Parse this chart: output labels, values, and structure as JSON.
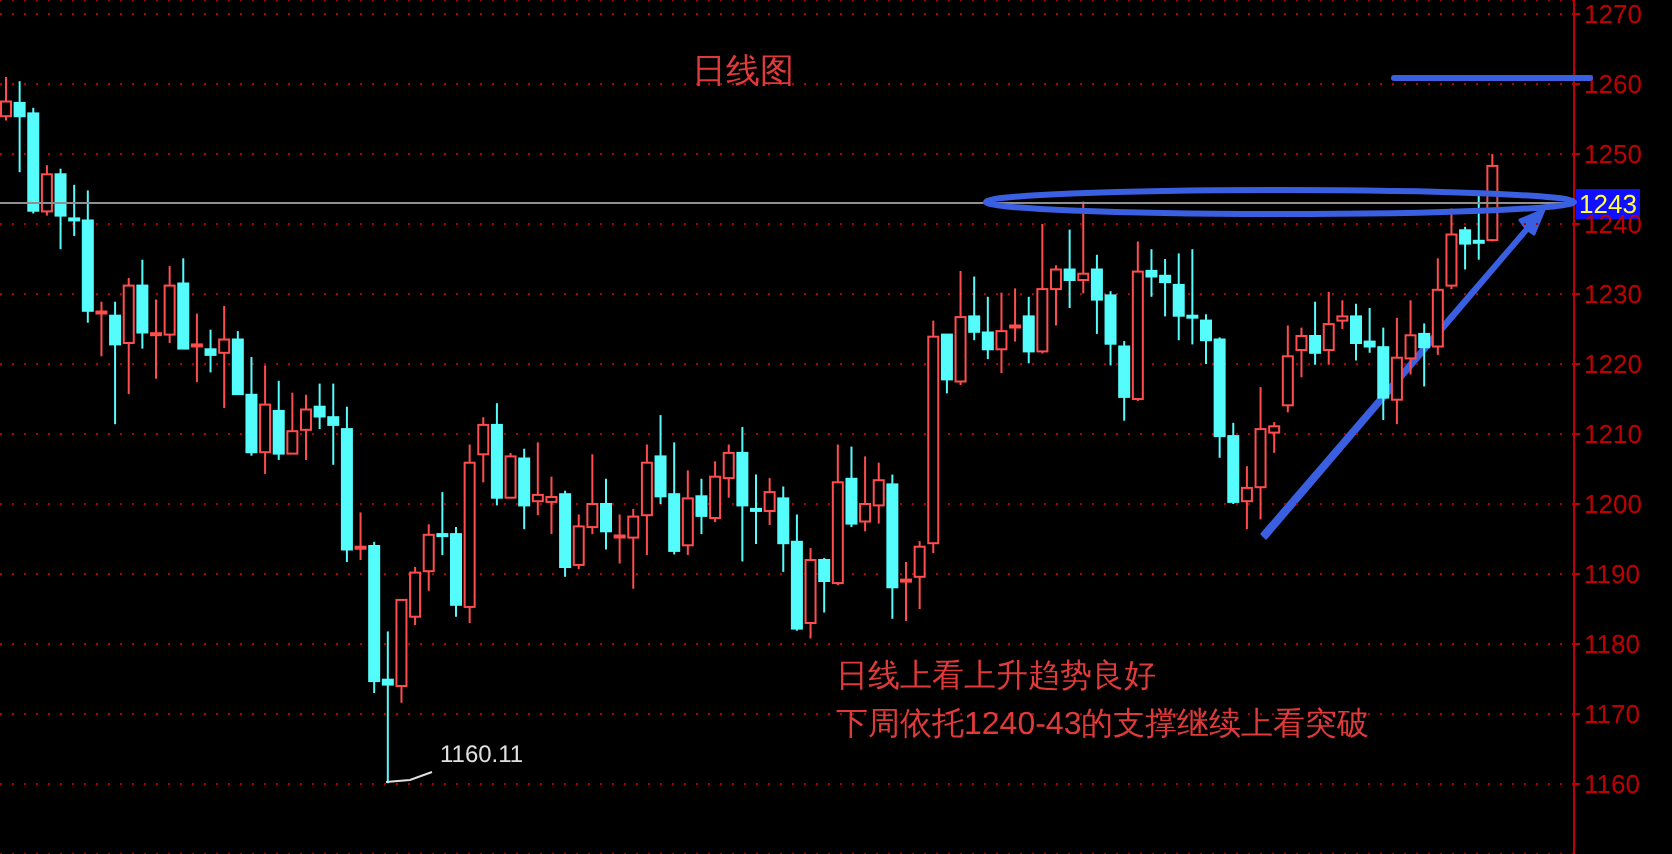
{
  "chart_data": {
    "type": "candlestick",
    "title": "日线图",
    "categories": [
      null,
      null,
      null,
      null,
      null,
      null,
      null,
      null,
      null,
      null,
      null,
      null,
      null,
      null,
      null,
      null,
      null,
      null,
      null,
      null,
      null,
      null,
      null,
      null,
      null,
      null,
      null,
      null,
      null,
      null,
      null,
      null,
      null,
      null,
      null,
      null,
      null,
      null,
      null,
      null,
      null,
      null,
      null,
      null,
      null,
      null,
      null,
      null,
      null,
      null,
      null,
      null,
      null,
      null,
      null,
      null,
      null,
      null,
      null,
      null,
      null,
      null,
      null,
      null,
      null,
      null,
      null,
      null,
      null,
      null,
      null,
      null,
      null,
      null,
      null,
      null,
      null,
      null,
      null,
      null,
      null,
      null,
      null,
      null,
      null,
      null,
      null,
      null,
      null,
      null,
      null,
      null,
      null,
      null,
      null,
      null,
      null,
      null,
      null,
      null,
      null,
      null,
      null,
      null,
      null,
      null,
      null,
      null,
      null,
      null
    ],
    "ohlc": [
      [
        1255.4,
        1261,
        1254.8,
        1257.5
      ],
      [
        1257.3,
        1260.4,
        1247.4,
        1255.4
      ],
      [
        1255.8,
        1256.6,
        1241.5,
        1241.9
      ],
      [
        1241.8,
        1248.4,
        1241.2,
        1247.1
      ],
      [
        1247.1,
        1247.9,
        1236.4,
        1241.2
      ],
      [
        1240.8,
        1245.6,
        1238.3,
        1240.6
      ],
      [
        1240.5,
        1244.8,
        1225.9,
        1227.6
      ],
      [
        1227.3,
        1228.9,
        1221.1,
        1227.5
      ],
      [
        1226.9,
        1228.9,
        1211.4,
        1222.8
      ],
      [
        1223,
        1232.3,
        1215.7,
        1231.2
      ],
      [
        1231.2,
        1234.9,
        1222.2,
        1224.5
      ],
      [
        1224.2,
        1229.2,
        1217.9,
        1224.4
      ],
      [
        1224.2,
        1234,
        1223,
        1231.2
      ],
      [
        1231.5,
        1235.1,
        1222.2,
        1222.2
      ],
      [
        1222.6,
        1227.2,
        1217.4,
        1222.8
      ],
      [
        1222.1,
        1224.9,
        1218.8,
        1221.3
      ],
      [
        1221.6,
        1228.3,
        1213.7,
        1223.5
      ],
      [
        1223.5,
        1224.7,
        1215.7,
        1215.7
      ],
      [
        1215.6,
        1221,
        1206.9,
        1207.4
      ],
      [
        1207.4,
        1219.8,
        1204.3,
        1214.2
      ],
      [
        1213.3,
        1217.6,
        1206.3,
        1207.2
      ],
      [
        1207.2,
        1215.9,
        1207.2,
        1210.4
      ],
      [
        1210.6,
        1215.6,
        1206.3,
        1213.5
      ],
      [
        1213.9,
        1217.2,
        1210.7,
        1212.5
      ],
      [
        1212.4,
        1217.2,
        1205.6,
        1211.3
      ],
      [
        1210.7,
        1213.9,
        1191.7,
        1193.5
      ],
      [
        1193.7,
        1198.8,
        1192,
        1193.9
      ],
      [
        1194,
        1194.6,
        1173,
        1174.7
      ],
      [
        1174.9,
        1181.8,
        1160.11,
        1174.2
      ],
      [
        1174,
        1186.3,
        1171.6,
        1186.3
      ],
      [
        1183.9,
        1191,
        1182.7,
        1190.2
      ],
      [
        1190.4,
        1197.1,
        1187.6,
        1195.6
      ],
      [
        1195.7,
        1201.7,
        1192.7,
        1195.5
      ],
      [
        1195.7,
        1196.7,
        1183.9,
        1185.6
      ],
      [
        1185.3,
        1208.5,
        1183,
        1205.9
      ],
      [
        1207.1,
        1212.4,
        1203.1,
        1211.3
      ],
      [
        1211.3,
        1214.4,
        1199.8,
        1200.9
      ],
      [
        1200.9,
        1207.3,
        1200.9,
        1206.8
      ],
      [
        1206.5,
        1207.9,
        1196.4,
        1199.8
      ],
      [
        1200.4,
        1208.8,
        1198.4,
        1201.3
      ],
      [
        1200.3,
        1203.9,
        1195.7,
        1201
      ],
      [
        1201.4,
        1201.9,
        1189.6,
        1191
      ],
      [
        1191.3,
        1198.5,
        1190.7,
        1196.8
      ],
      [
        1196.7,
        1207.1,
        1195.7,
        1200
      ],
      [
        1200,
        1203.6,
        1193.5,
        1196.1
      ],
      [
        1195.3,
        1198.5,
        1191.5,
        1195.5
      ],
      [
        1195.2,
        1199.3,
        1187.9,
        1198.2
      ],
      [
        1198.4,
        1208.5,
        1192.7,
        1205.9
      ],
      [
        1206.8,
        1212.7,
        1200,
        1201.1
      ],
      [
        1201.4,
        1208.8,
        1192.8,
        1193.3
      ],
      [
        1194.1,
        1204.8,
        1192.7,
        1200.8
      ],
      [
        1201.1,
        1203.6,
        1195.7,
        1198.3
      ],
      [
        1198,
        1206.1,
        1197.4,
        1203.9
      ],
      [
        1203.7,
        1208.5,
        1200.9,
        1207.3
      ],
      [
        1207.3,
        1211,
        1191.8,
        1199.8
      ],
      [
        1199.3,
        1204.2,
        1194.3,
        1199.1
      ],
      [
        1199,
        1203.7,
        1197,
        1201.7
      ],
      [
        1200.8,
        1202.5,
        1190.3,
        1194.4
      ],
      [
        1194.6,
        1198.5,
        1181.9,
        1182.2
      ],
      [
        1183,
        1193.7,
        1180.8,
        1192
      ],
      [
        1192,
        1192.3,
        1184.5,
        1189
      ],
      [
        1188.7,
        1208.5,
        1188.4,
        1203.1
      ],
      [
        1203.6,
        1208.2,
        1196.7,
        1197.2
      ],
      [
        1197.5,
        1206.8,
        1196.1,
        1200
      ],
      [
        1199.8,
        1205.9,
        1197.2,
        1203.4
      ],
      [
        1202.8,
        1204.2,
        1183.6,
        1188.1
      ],
      [
        1189,
        1191.7,
        1183.3,
        1189.2
      ],
      [
        1189.6,
        1194.7,
        1185,
        1193.9
      ],
      [
        1194.4,
        1226.2,
        1193,
        1223.9
      ],
      [
        1224.2,
        1224.2,
        1215.8,
        1217.8
      ],
      [
        1217.5,
        1233.3,
        1217,
        1226.7
      ],
      [
        1226.8,
        1232.5,
        1223.4,
        1224.6
      ],
      [
        1224.5,
        1229.6,
        1220.7,
        1222.1
      ],
      [
        1222.1,
        1230.2,
        1218.7,
        1224.7
      ],
      [
        1225.3,
        1230.8,
        1223.2,
        1225.5
      ],
      [
        1226.8,
        1229.6,
        1220.1,
        1221.8
      ],
      [
        1221.8,
        1240,
        1221.5,
        1230.7
      ],
      [
        1230.7,
        1234.1,
        1225.5,
        1233.5
      ],
      [
        1233.5,
        1239.2,
        1228,
        1232
      ],
      [
        1232,
        1243.2,
        1230.1,
        1232.9
      ],
      [
        1233.5,
        1235.6,
        1224.3,
        1229.2
      ],
      [
        1229.8,
        1230.4,
        1219.8,
        1222.9
      ],
      [
        1222.5,
        1223.3,
        1211.9,
        1215.3
      ],
      [
        1215,
        1237.5,
        1214.7,
        1233.2
      ],
      [
        1233.3,
        1236.4,
        1229.6,
        1232.5
      ],
      [
        1232.6,
        1235,
        1226.8,
        1231.7
      ],
      [
        1231.3,
        1235.8,
        1223.4,
        1226.9
      ],
      [
        1226.9,
        1236.4,
        1222.8,
        1226.7
      ],
      [
        1226.2,
        1227.1,
        1220,
        1223.4
      ],
      [
        1223.5,
        1223.8,
        1206.6,
        1209.7
      ],
      [
        1209.7,
        1211.6,
        1200,
        1200.3
      ],
      [
        1200.4,
        1205.4,
        1196.4,
        1202.3
      ],
      [
        1202.4,
        1216.7,
        1197.8,
        1210.7
      ],
      [
        1210.2,
        1211.7,
        1207.3,
        1211.1
      ],
      [
        1214.1,
        1225.5,
        1213.1,
        1221.1
      ],
      [
        1222,
        1225.2,
        1218.1,
        1224
      ],
      [
        1224,
        1228.9,
        1219.9,
        1221.6
      ],
      [
        1222,
        1230.3,
        1219.9,
        1225.7
      ],
      [
        1226.2,
        1229.1,
        1225,
        1226.8
      ],
      [
        1226.8,
        1228.6,
        1220.5,
        1223
      ],
      [
        1223.2,
        1228,
        1221.6,
        1222.5
      ],
      [
        1222.4,
        1225.2,
        1212,
        1215.2
      ],
      [
        1214.9,
        1226.6,
        1211.4,
        1220.9
      ],
      [
        1220.8,
        1229.1,
        1218.5,
        1224.1
      ],
      [
        1224.3,
        1225.8,
        1216.8,
        1222.4
      ],
      [
        1222.5,
        1235.1,
        1221.3,
        1230.6
      ],
      [
        1231.2,
        1242.2,
        1230.7,
        1238.5
      ],
      [
        1239.1,
        1239.6,
        1233.5,
        1237.2
      ],
      [
        1237.6,
        1244.4,
        1234.9,
        1237.4
      ],
      [
        1237.7,
        1250,
        1237.5,
        1248.3
      ]
    ],
    "colors": [
      "#ff4d4d",
      "#54fcfc",
      "#54fcfc",
      "#ff4d4d",
      "#54fcfc",
      "#54fcfc",
      "#54fcfc",
      "#ff4d4d",
      "#54fcfc",
      "#ff4d4d",
      "#54fcfc",
      "#ff4d4d",
      "#ff4d4d",
      "#54fcfc",
      "#ff4d4d",
      "#54fcfc",
      "#ff4d4d",
      "#54fcfc",
      "#54fcfc",
      "#ff4d4d",
      "#54fcfc",
      "#ff4d4d",
      "#ff4d4d",
      "#54fcfc",
      "#54fcfc",
      "#54fcfc",
      "#ff4d4d",
      "#54fcfc",
      "#54fcfc",
      "#ff4d4d",
      "#ff4d4d",
      "#ff4d4d",
      "#54fcfc",
      "#54fcfc",
      "#ff4d4d",
      "#ff4d4d",
      "#54fcfc",
      "#ff4d4d",
      "#54fcfc",
      "#ff4d4d",
      "#ff4d4d",
      "#54fcfc",
      "#ff4d4d",
      "#ff4d4d",
      "#54fcfc",
      "#ff4d4d",
      "#ff4d4d",
      "#ff4d4d",
      "#54fcfc",
      "#54fcfc",
      "#ff4d4d",
      "#54fcfc",
      "#ff4d4d",
      "#ff4d4d",
      "#54fcfc",
      "#54fcfc",
      "#ff4d4d",
      "#54fcfc",
      "#54fcfc",
      "#ff4d4d",
      "#54fcfc",
      "#ff4d4d",
      "#54fcfc",
      "#ff4d4d",
      "#ff4d4d",
      "#54fcfc",
      "#ff4d4d",
      "#ff4d4d",
      "#ff4d4d",
      "#54fcfc",
      "#ff4d4d",
      "#54fcfc",
      "#54fcfc",
      "#ff4d4d",
      "#ff4d4d",
      "#54fcfc",
      "#ff4d4d",
      "#ff4d4d",
      "#54fcfc",
      "#ff4d4d",
      "#54fcfc",
      "#54fcfc",
      "#54fcfc",
      "#ff4d4d",
      "#54fcfc",
      "#54fcfc",
      "#54fcfc",
      "#54fcfc",
      "#54fcfc",
      "#54fcfc",
      "#54fcfc",
      "#ff4d4d",
      "#ff4d4d",
      "#ff4d4d",
      "#ff4d4d",
      "#ff4d4d",
      "#54fcfc",
      "#ff4d4d",
      "#ff4d4d",
      "#54fcfc",
      "#54fcfc",
      "#54fcfc",
      "#ff4d4d",
      "#ff4d4d",
      "#54fcfc",
      "#ff4d4d",
      "#ff4d4d",
      "#54fcfc",
      "#54fcfc",
      "#ff4d4d"
    ],
    "ylim": [
      1150,
      1272
    ],
    "yticks": [
      1160,
      1170,
      1180,
      1190,
      1200,
      1210,
      1220,
      1230,
      1240,
      1250,
      1260,
      1270
    ],
    "grid": "y",
    "tick_labels": "y",
    "ref_lines": [
      {
        "axis": "y",
        "value": 1243,
        "label": "1243",
        "color": "#909090"
      }
    ],
    "annotations": [
      "日线上看上升趋势良好",
      "下周依托1240-43的支撑继续上看突破",
      "1160.11"
    ]
  }
}
